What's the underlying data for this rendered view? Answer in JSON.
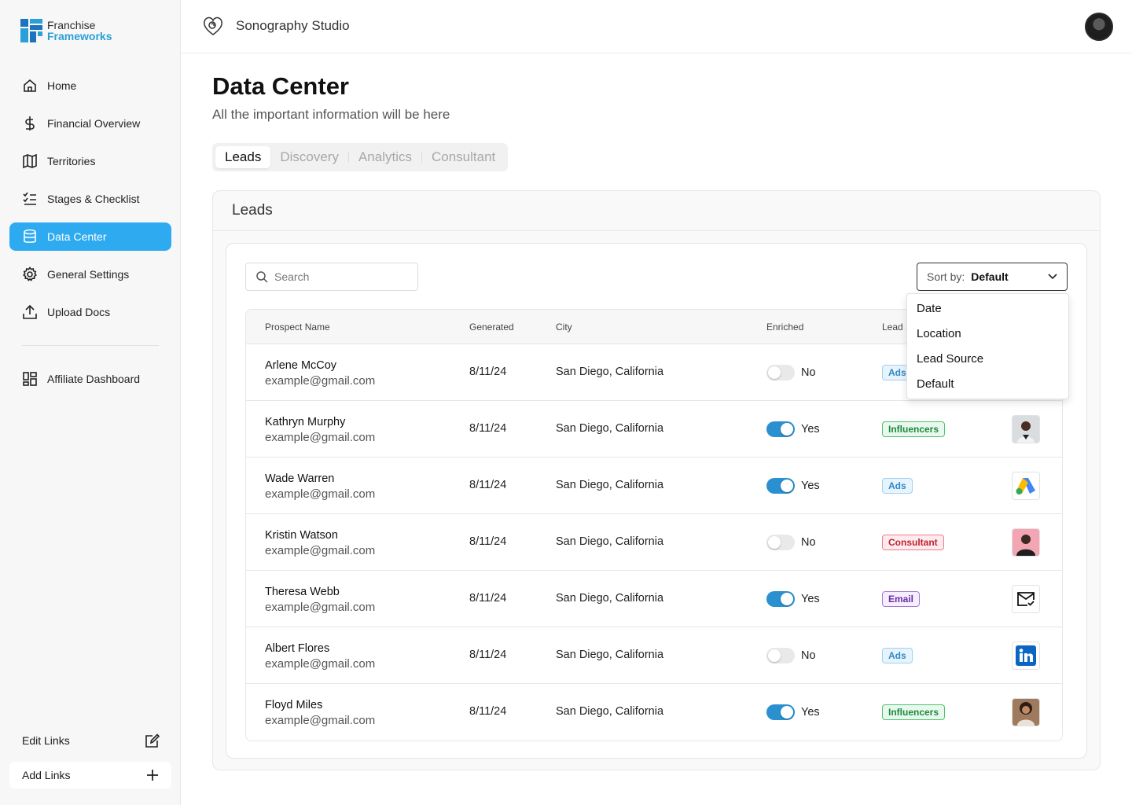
{
  "brand": {
    "line1": "Franchise",
    "line2": "Frameworks"
  },
  "sidebar": {
    "items": [
      {
        "label": "Home",
        "icon": "home-icon"
      },
      {
        "label": "Financial Overview",
        "icon": "dollar-icon"
      },
      {
        "label": "Territories",
        "icon": "map-icon"
      },
      {
        "label": "Stages & Checklist",
        "icon": "checklist-icon"
      },
      {
        "label": "Data Center",
        "icon": "database-icon",
        "active": true
      },
      {
        "label": "General Settings",
        "icon": "gear-icon"
      },
      {
        "label": "Upload Docs",
        "icon": "upload-icon"
      }
    ],
    "affiliate": {
      "label": "Affiliate Dashboard",
      "icon": "dashboard-icon"
    },
    "edit_links": "Edit Links",
    "add_links": "Add Links"
  },
  "header": {
    "studio": "Sonography Studio"
  },
  "page": {
    "title": "Data Center",
    "subtitle": "All the important information will be here"
  },
  "tabs": [
    "Leads",
    "Discovery",
    "Analytics",
    "Consultant"
  ],
  "panel": {
    "title": "Leads"
  },
  "search": {
    "placeholder": "Search"
  },
  "sort": {
    "label": "Sort by:",
    "value": "Default",
    "options": [
      "Date",
      "Location",
      "Lead Source",
      "Default"
    ]
  },
  "table": {
    "headers": {
      "name": "Prospect Name",
      "generated": "Generated",
      "city": "City",
      "enriched": "Enriched",
      "lead": "Lead S"
    },
    "rows": [
      {
        "name": "Arlene McCoy",
        "email": "example@gmail.com",
        "generated": "8/11/24",
        "city": "San Diego, California",
        "enriched": "No",
        "source": "Ads",
        "source_icon": "none"
      },
      {
        "name": "Kathryn Murphy",
        "email": "example@gmail.com",
        "generated": "8/11/24",
        "city": "San Diego, California",
        "enriched": "Yes",
        "source": "Influencers",
        "source_icon": "person-photo-icon"
      },
      {
        "name": "Wade Warren",
        "email": "example@gmail.com",
        "generated": "8/11/24",
        "city": "San Diego, California",
        "enriched": "Yes",
        "source": "Ads",
        "source_icon": "google-ads-icon"
      },
      {
        "name": "Kristin Watson",
        "email": "example@gmail.com",
        "generated": "8/11/24",
        "city": "San Diego, California",
        "enriched": "No",
        "source": "Consultant",
        "source_icon": "consultant-photo-icon"
      },
      {
        "name": "Theresa Webb",
        "email": "example@gmail.com",
        "generated": "8/11/24",
        "city": "San Diego, California",
        "enriched": "Yes",
        "source": "Email",
        "source_icon": "mail-check-icon"
      },
      {
        "name": "Albert Flores",
        "email": "example@gmail.com",
        "generated": "8/11/24",
        "city": "San Diego, California",
        "enriched": "No",
        "source": "Ads",
        "source_icon": "linkedin-icon"
      },
      {
        "name": "Floyd Miles",
        "email": "example@gmail.com",
        "generated": "8/11/24",
        "city": "San Diego, California",
        "enriched": "Yes",
        "source": "Influencers",
        "source_icon": "influencer-photo-icon"
      }
    ]
  },
  "colors": {
    "accent": "#2eaaf0",
    "toggle_on": "#2a90d0",
    "brand_blue": "#1e73be"
  }
}
